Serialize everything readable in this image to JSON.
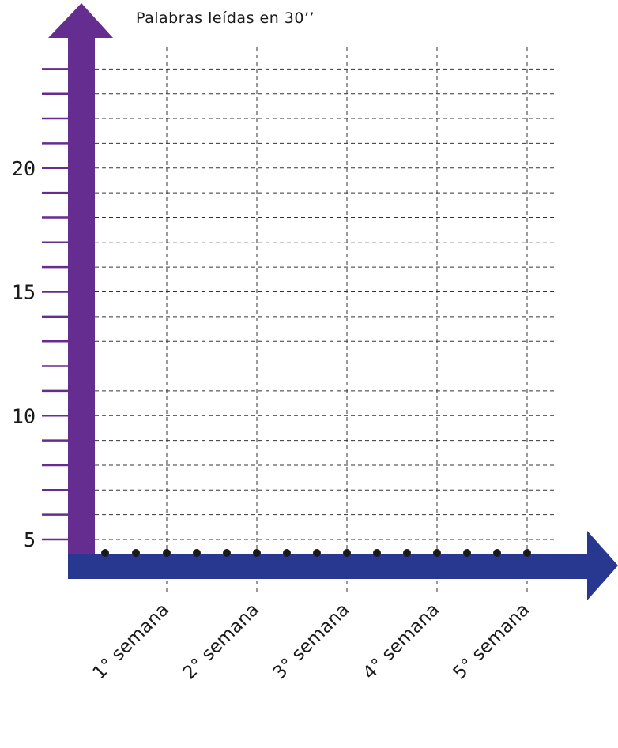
{
  "chart_data": {
    "type": "line",
    "title": "Palabras leídas en 30’’",
    "categories": [
      "1° semana",
      "2° semana",
      "3° semana",
      "4° semana",
      "5° semana"
    ],
    "y_ticks": [
      "5",
      "10",
      "15",
      "20"
    ],
    "ylim": [
      5,
      24
    ],
    "y_minor_step": 1,
    "series": [],
    "grid": true,
    "colors": {
      "y_axis": "#662d91",
      "x_axis": "#283891",
      "grid": "#333333",
      "dots": "#1a1a1a"
    }
  }
}
